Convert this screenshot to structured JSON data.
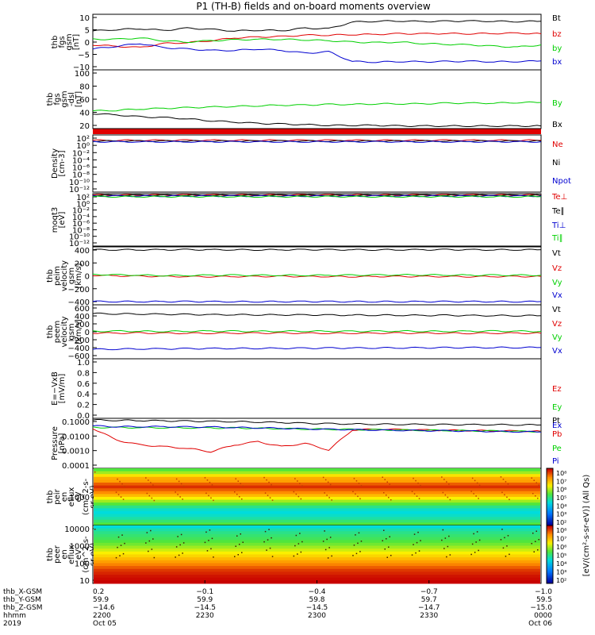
{
  "title": "P1 (TH-B) fields and on-board moments overview",
  "colors": {
    "black": "#000000",
    "red": "#e00000",
    "green": "#00d000",
    "blue": "#0000d0",
    "orange": "#e08000"
  },
  "chart_data": [
    {
      "id": "fgs",
      "type": "line",
      "ylabel": [
        "thb",
        "fgs",
        "gsm",
        "[nT]"
      ],
      "ylim": [
        -10,
        10
      ],
      "yticks": [
        "10",
        "5",
        "0",
        "−5",
        "−10"
      ],
      "series": [
        {
          "name": "Bt",
          "color": "black",
          "values": [
            4,
            4.5,
            4.8,
            4.2,
            5,
            4.6,
            4,
            4.3,
            4.1,
            5,
            4.8,
            7.2,
            7.5,
            7.6,
            7.4,
            7.5,
            7.6,
            7.5,
            7.4,
            7.5
          ]
        },
        {
          "name": "bz",
          "color": "red",
          "values": [
            -1,
            -1.5,
            -2,
            -0.5,
            -0.2,
            0.5,
            1.5,
            1.8,
            2,
            2.5,
            2.5,
            2.7,
            2.8,
            3,
            3,
            3.1,
            3,
            3.1,
            3.2,
            3
          ]
        },
        {
          "name": "by",
          "color": "green",
          "values": [
            1,
            1,
            1.5,
            0.5,
            0,
            0.5,
            0.8,
            1,
            1,
            0.8,
            0.5,
            0,
            -0.2,
            0,
            -0.5,
            -0.8,
            -1,
            -1.5,
            -1.8,
            -1
          ]
        },
        {
          "name": "bx",
          "color": "blue",
          "values": [
            -2.5,
            -1.5,
            -0.5,
            -2,
            -2.5,
            -3,
            -3,
            -2.5,
            -3,
            -4,
            -3.5,
            -7,
            -7.2,
            -7,
            -7.1,
            -7,
            -6.9,
            -7.1,
            -7,
            -6.8
          ]
        }
      ]
    },
    {
      "id": "fgs_dsl",
      "type": "line",
      "ylabel": [
        "thb",
        "fgs",
        "gsm",
        "-dsl",
        "[nT]"
      ],
      "ylim": [
        10,
        100
      ],
      "yticks": [
        "100",
        "80",
        "60",
        "40",
        "20"
      ],
      "series": [
        {
          "name": "By",
          "color": "green",
          "values": [
            37,
            38,
            40,
            41,
            42,
            43,
            44,
            45,
            46,
            46,
            47,
            47,
            48,
            48,
            48,
            49,
            49,
            49,
            50,
            50
          ]
        },
        {
          "name": "Bx",
          "color": "black",
          "values": [
            33,
            31,
            28,
            27,
            25,
            22,
            20,
            18,
            17,
            16,
            15,
            15,
            15,
            14,
            14,
            14,
            14,
            14,
            14,
            14
          ]
        }
      ]
    },
    {
      "id": "density",
      "type": "line",
      "ylabel": [
        "Density",
        "[cm-3]"
      ],
      "ylim": [
        -13,
        2
      ],
      "log": true,
      "yticks": [
        "10²",
        "10⁰",
        "10⁻²",
        "10⁻⁴",
        "10⁻⁶",
        "10⁻⁸",
        "10⁻¹⁰",
        "10⁻¹²"
      ],
      "series": [
        {
          "name": "Ne",
          "color": "red",
          "values": [
            0.6,
            0.6,
            0.6,
            0.6,
            0.6,
            0.6,
            0.6,
            0.6,
            0.6,
            0.6,
            0.6,
            0.6,
            0.6,
            0.6,
            0.6,
            0.6,
            0.6,
            0.6,
            0.6,
            0.6
          ]
        },
        {
          "name": "Ni",
          "color": "black",
          "values": [
            0.4,
            0.4,
            0.4,
            0.4,
            0.4,
            0.4,
            0.4,
            0.4,
            0.4,
            0.4,
            0.4,
            0.4,
            0.4,
            0.4,
            0.4,
            0.4,
            0.4,
            0.4,
            0.4,
            0.4
          ]
        },
        {
          "name": "Npot",
          "color": "blue",
          "values": [
            0.2,
            0.2,
            0.2,
            0.2,
            0.2,
            0.2,
            0.2,
            0.2,
            0.2,
            0.2,
            0.2,
            0.2,
            0.2,
            0.2,
            0.2,
            0.2,
            0.2,
            0.2,
            0.2,
            0.2
          ]
        }
      ]
    },
    {
      "id": "temp",
      "type": "line",
      "ylabel": [
        "moqt3",
        "[eV]"
      ],
      "ylim": [
        -13,
        3
      ],
      "log": true,
      "yticks": [
        "10²",
        "10⁰",
        "10⁻²",
        "10⁻⁴",
        "10⁻⁶",
        "10⁻⁸",
        "10⁻¹⁰",
        "10⁻¹²"
      ],
      "series": [
        {
          "name": "Te⊥",
          "color": "red",
          "values": [
            2.6,
            2.6,
            2.6,
            2.6,
            2.6,
            2.6,
            2.6,
            2.6,
            2.6,
            2.6,
            2.6,
            2.6,
            2.6,
            2.6,
            2.6,
            2.6,
            2.6,
            2.6,
            2.6,
            2.6
          ]
        },
        {
          "name": "Te∥",
          "color": "black",
          "values": [
            2.5,
            2.5,
            2.5,
            2.5,
            2.5,
            2.5,
            2.5,
            2.5,
            2.5,
            2.5,
            2.5,
            2.5,
            2.5,
            2.5,
            2.5,
            2.5,
            2.5,
            2.5,
            2.5,
            2.5
          ]
        },
        {
          "name": "Ti⊥",
          "color": "blue",
          "values": [
            2.3,
            2.3,
            2.3,
            2.3,
            2.3,
            2.3,
            2.3,
            2.3,
            2.3,
            2.3,
            2.3,
            2.3,
            2.3,
            2.3,
            2.3,
            2.3,
            2.3,
            2.3,
            2.3,
            2.3
          ]
        },
        {
          "name": "Ti∥",
          "color": "green",
          "values": [
            2.1,
            2.1,
            2.1,
            2.1,
            2.1,
            2.1,
            2.1,
            2.1,
            2.1,
            2.1,
            2.1,
            2.1,
            2.1,
            2.1,
            2.1,
            2.1,
            2.1,
            2.1,
            2.1,
            2.1
          ]
        }
      ]
    },
    {
      "id": "peim",
      "type": "line",
      "ylabel": [
        "thb",
        "peim",
        "velocity",
        "gsm",
        "[km/s]"
      ],
      "ylim": [
        -450,
        450
      ],
      "yticks": [
        "400",
        "200",
        "0",
        "−200",
        "−400"
      ],
      "series": [
        {
          "name": "Vt",
          "color": "black",
          "values": [
            405,
            405,
            404,
            405,
            406,
            405,
            405,
            404,
            405,
            406,
            405,
            405,
            404,
            405,
            405,
            406,
            405,
            404,
            405,
            405
          ]
        },
        {
          "name": "Vz",
          "color": "red",
          "values": [
            10,
            0,
            -5,
            -10,
            -10,
            -12,
            -10,
            -10,
            -8,
            -10,
            -10,
            -12,
            -10,
            -10,
            -10,
            -10,
            -12,
            -10,
            -10,
            -10
          ]
        },
        {
          "name": "Vy",
          "color": "green",
          "values": [
            20,
            15,
            10,
            5,
            5,
            10,
            10,
            8,
            10,
            8,
            10,
            10,
            12,
            15,
            15,
            12,
            10,
            10,
            10,
            10
          ]
        },
        {
          "name": "Vx",
          "color": "blue",
          "values": [
            -398,
            -399,
            -400,
            -400,
            -399,
            -400,
            -401,
            -400,
            -400,
            -399,
            -400,
            -400,
            -400,
            -401,
            -400,
            -400,
            -399,
            -400,
            -400,
            -400
          ]
        }
      ]
    },
    {
      "id": "peem",
      "type": "line",
      "ylabel": [
        "thb",
        "peem",
        "velocity",
        "gsm",
        "[km/s]"
      ],
      "ylim": [
        -600,
        600
      ],
      "yticks": [
        "600",
        "400",
        "200",
        "0",
        "−200",
        "−400",
        "−600"
      ],
      "series": [
        {
          "name": "Vt",
          "color": "black",
          "values": [
            405,
            400,
            395,
            390,
            385,
            380,
            380,
            378,
            375,
            375,
            372,
            370,
            370,
            368,
            365,
            365,
            362,
            360,
            360,
            358
          ]
        },
        {
          "name": "Vz",
          "color": "red",
          "values": [
            -25,
            -30,
            -28,
            -30,
            -32,
            -30,
            -30,
            -28,
            -30,
            -30,
            -32,
            -30,
            -30,
            -28,
            -30,
            -30,
            -32,
            -30,
            -30,
            -30
          ]
        },
        {
          "name": "Vy",
          "color": "green",
          "values": [
            10,
            15,
            12,
            10,
            12,
            15,
            12,
            10,
            12,
            15,
            12,
            10,
            12,
            15,
            12,
            10,
            12,
            15,
            12,
            10
          ]
        },
        {
          "name": "Vx",
          "color": "blue",
          "values": [
            -390,
            -385,
            -380,
            -378,
            -375,
            -372,
            -370,
            -368,
            -366,
            -365,
            -362,
            -360,
            -358,
            -357,
            -355,
            -354,
            -352,
            -350,
            -350,
            -348
          ]
        }
      ]
    },
    {
      "id": "efield",
      "type": "line",
      "ylabel": [
        "E=−VxB",
        "[mV/m]"
      ],
      "ylim": [
        0,
        1
      ],
      "yticks": [
        "1.0",
        "0.8",
        "0.6",
        "0.4",
        "0.2",
        "0.0"
      ],
      "series": [
        {
          "name": "Ez",
          "color": "red",
          "values": []
        },
        {
          "name": "Ey",
          "color": "green",
          "values": []
        },
        {
          "name": "Ex",
          "color": "blue",
          "values": []
        }
      ]
    },
    {
      "id": "pressure",
      "type": "line",
      "ylabel": [
        "Pressure",
        "[nPa]"
      ],
      "ylim": [
        -4,
        -1
      ],
      "log": true,
      "yticks": [
        "0.1000",
        "0.0100",
        "0.0010",
        "0.0001"
      ],
      "series": [
        {
          "name": "Pt",
          "color": "black",
          "values": [
            -1.1,
            -1.12,
            -1.13,
            -1.15,
            -1.17,
            -1.18,
            -1.2,
            -1.22,
            -1.25,
            -1.3,
            -1.32,
            -1.34,
            -1.35,
            -1.36,
            -1.37,
            -1.38,
            -1.38,
            -1.38,
            -1.39,
            -1.4
          ]
        },
        {
          "name": "Pb",
          "color": "red",
          "values": [
            -1.6,
            -2.3,
            -2.6,
            -2.7,
            -2.8,
            -3.0,
            -2.6,
            -2.4,
            -2.7,
            -2.5,
            -2.9,
            -1.7,
            -1.65,
            -1.68,
            -1.7,
            -1.72,
            -1.73,
            -1.75,
            -1.76,
            -1.78
          ]
        },
        {
          "name": "Pe",
          "color": "green",
          "values": [
            -1.55,
            -1.55,
            -1.56,
            -1.56,
            -1.57,
            -1.58,
            -1.58,
            -1.6,
            -1.62,
            -1.64,
            -1.66,
            -1.67,
            -1.69,
            -1.7,
            -1.72,
            -1.73,
            -1.75,
            -1.76,
            -1.78,
            -1.8
          ]
        },
        {
          "name": "Pi",
          "color": "blue",
          "values": [
            -1.45,
            -1.5,
            -1.5,
            -1.5,
            -1.52,
            -1.52,
            -1.55,
            -1.57,
            -1.6,
            -1.64,
            -1.66,
            -1.68,
            -1.7,
            -1.72,
            -1.74,
            -1.75,
            -1.77,
            -1.79,
            -1.8,
            -1.82
          ]
        }
      ]
    },
    {
      "id": "peir",
      "type": "heatmap",
      "ylabel": [
        "thb",
        "peir",
        "en",
        "eflux",
        "eV",
        "(cm^2-s-",
        "sr-eV)"
      ],
      "yticks": [
        "1000"
      ],
      "rows": [
        0.55,
        0.62,
        0.72,
        0.8,
        0.82,
        0.9,
        0.95,
        0.9,
        0.85,
        0.78,
        0.7,
        0.62,
        0.55,
        0.48,
        0.42,
        0.4,
        0.42,
        0.45,
        0.5,
        0.55
      ]
    },
    {
      "id": "peer",
      "type": "heatmap",
      "ylabel": [
        "thb",
        "peer",
        "en",
        "eflux",
        "eV",
        "(cm^2-s-",
        "sr-eV)"
      ],
      "yticks": [
        "10000",
        "1000",
        "100",
        "10"
      ],
      "rows": [
        0.4,
        0.45,
        0.48,
        0.5,
        0.52,
        0.55,
        0.58,
        0.62,
        0.66,
        0.7,
        0.74,
        0.78,
        0.82,
        0.86,
        0.9,
        0.94,
        0.96,
        0.98,
        0.99,
        1.0
      ]
    }
  ],
  "colorbar": {
    "labels": [
      "10⁸",
      "10⁷",
      "10⁶",
      "10⁵",
      "10⁴",
      "10³",
      "10²"
    ],
    "title": "[eV/(cm²-s-sr-eV)] (All Qs)"
  },
  "xaxis": {
    "rows": [
      {
        "label": "thb_X-GSM",
        "values": [
          "0.2",
          "−0.1",
          "−0.4",
          "−0.7",
          "−1.0"
        ]
      },
      {
        "label": "thb_Y-GSM",
        "values": [
          "59.9",
          "59.9",
          "59.8",
          "59.7",
          "59.5"
        ]
      },
      {
        "label": "thb_Z-GSM",
        "values": [
          "−14.6",
          "−14.5",
          "−14.5",
          "−14.7",
          "−15.0"
        ]
      },
      {
        "label": "hhmm",
        "values": [
          "2200",
          "2230",
          "2300",
          "2330",
          "0000"
        ]
      },
      {
        "label": "2019",
        "values": [
          "Oct 05",
          "",
          "",
          "",
          "Oct 06"
        ]
      }
    ]
  }
}
